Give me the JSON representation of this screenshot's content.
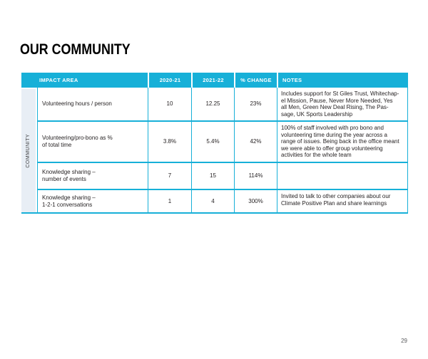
{
  "title": "OUR COMMUNITY",
  "page_number": "29",
  "colors": {
    "accent_cyan": "#17b0d8",
    "category_bg": "#e8eef5",
    "header_text": "#ffffff",
    "body_text": "#231f20"
  },
  "table": {
    "category": "COMMUNITY",
    "headers": [
      "IMPACT AREA",
      "2020-21",
      "2021-22",
      "% CHANGE",
      "NOTES"
    ],
    "rows": [
      {
        "impact_area": "Volunteering hours / person",
        "y2020_21": "10",
        "y2021_22": "12.25",
        "change": "23%",
        "notes": "Includes support for St Giles Trust, Whitechap-\nel Mission, Pause, Never More Needed, Yes\nall Men, Green New Deal Rising, The Pas-\nsage, UK Sports Leadership"
      },
      {
        "impact_area": "Volunteering/pro-bono as %\nof total time",
        "y2020_21": "3.8%",
        "y2021_22": "5.4%",
        "change": "42%",
        "notes": "100% of staff involved with pro bono and\nvolunteering time during the year across a\nrange of issues. Being back in the office meant\nwe were able to offer group volunteering\nactivities for the whole team"
      },
      {
        "impact_area": "Knowledge sharing –\nnumber of events",
        "y2020_21": "7",
        "y2021_22": "15",
        "change": "114%",
        "notes": ""
      },
      {
        "impact_area": "Knowledge sharing –\n1-2-1 conversations",
        "y2020_21": "1",
        "y2021_22": "4",
        "change": "300%",
        "notes": "Invited to talk to other companies about our\nClimate Positive Plan and share learnings"
      }
    ]
  }
}
